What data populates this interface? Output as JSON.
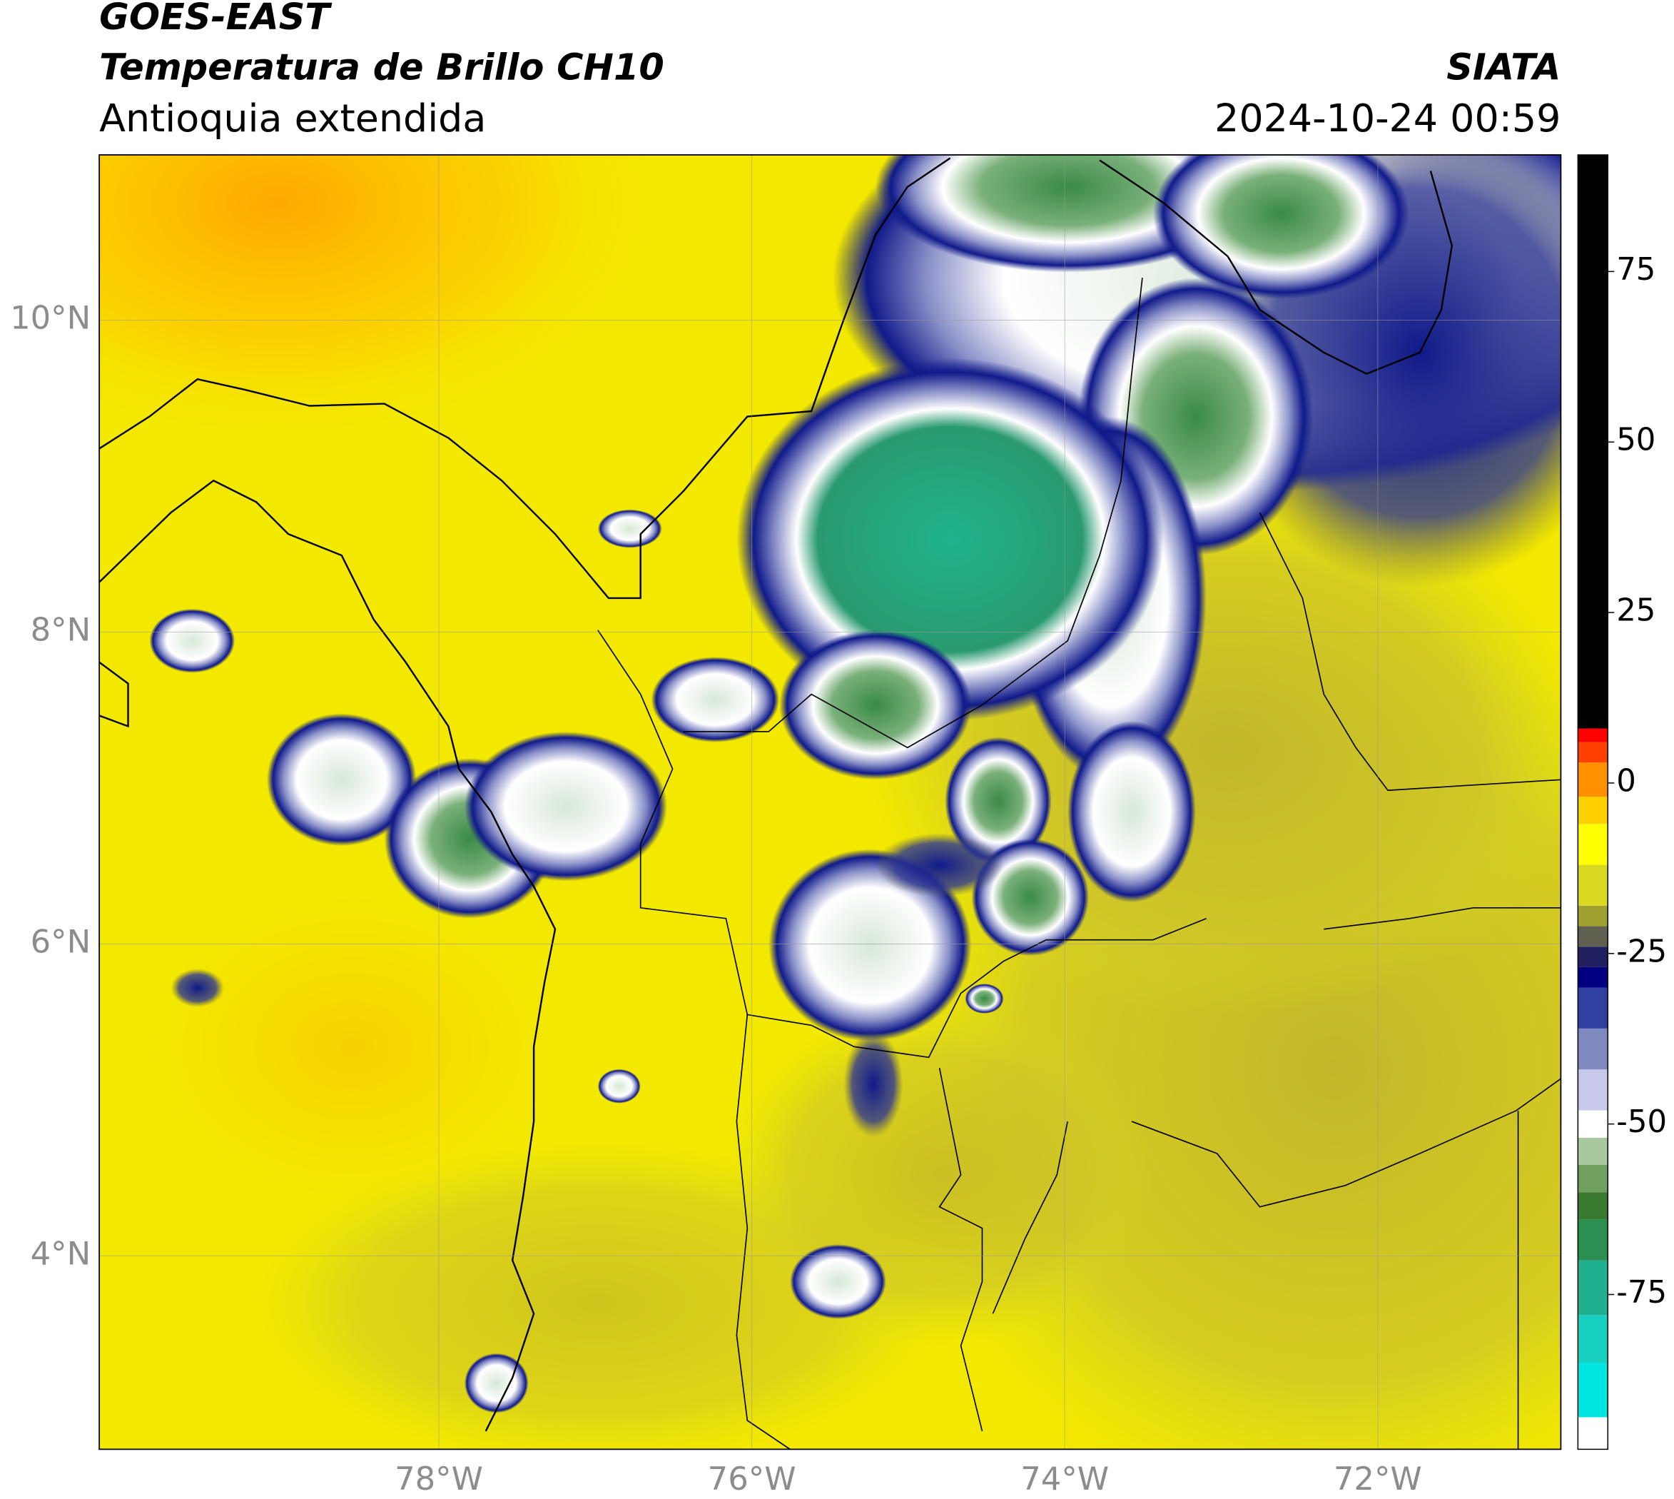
{
  "header": {
    "title": "GOES-EAST",
    "subtitle": "Temperatura de Brillo CH10",
    "region": "Antioquia extendida",
    "source": "SIATA",
    "datetime": "2024-10-24 00:59"
  },
  "map": {
    "lonlim": [
      -80.17,
      -70.83
    ],
    "latlim": [
      2.76,
      11.06
    ],
    "lonticks": [
      {
        "value": -78,
        "label": "78°W"
      },
      {
        "value": -76,
        "label": "76°W"
      },
      {
        "value": -74,
        "label": "74°W"
      },
      {
        "value": -72,
        "label": "72°W"
      }
    ],
    "latticks": [
      {
        "value": 10,
        "label": "10°N"
      },
      {
        "value": 8,
        "label": "8°N"
      },
      {
        "value": 6,
        "label": "6°N"
      },
      {
        "value": 4,
        "label": "4°N"
      }
    ],
    "grid": true
  },
  "colorbar": {
    "clim": [
      -97.7,
      92.1
    ],
    "ticks": [
      75,
      50,
      25,
      0,
      -25,
      -50,
      -75
    ],
    "bands": [
      {
        "value": -97.7,
        "color": "#ffffff"
      },
      {
        "value": -93,
        "color": "#00e5e0"
      },
      {
        "value": -85,
        "color": "#18d0c0"
      },
      {
        "value": -78,
        "color": "#20b090"
      },
      {
        "value": -70,
        "color": "#2a8f50"
      },
      {
        "value": -64,
        "color": "#3a7a30"
      },
      {
        "value": -60,
        "color": "#6fa060"
      },
      {
        "value": -56,
        "color": "#a8c8a0"
      },
      {
        "value": -52,
        "color": "#ffffff"
      },
      {
        "value": -48,
        "color": "#c8c8e8"
      },
      {
        "value": -42,
        "color": "#8088c0"
      },
      {
        "value": -36,
        "color": "#3040a0"
      },
      {
        "value": -30,
        "color": "#000080"
      },
      {
        "value": -27,
        "color": "#202060"
      },
      {
        "value": -24,
        "color": "#606050"
      },
      {
        "value": -21,
        "color": "#a0a030"
      },
      {
        "value": -18,
        "color": "#d8d820"
      },
      {
        "value": -12,
        "color": "#ffff00"
      },
      {
        "value": -6,
        "color": "#ffd000"
      },
      {
        "value": -2,
        "color": "#ff9000"
      },
      {
        "value": 3,
        "color": "#ff4000"
      },
      {
        "value": 6,
        "color": "#ff0000"
      },
      {
        "value": 8,
        "color": "#000000"
      }
    ]
  }
}
